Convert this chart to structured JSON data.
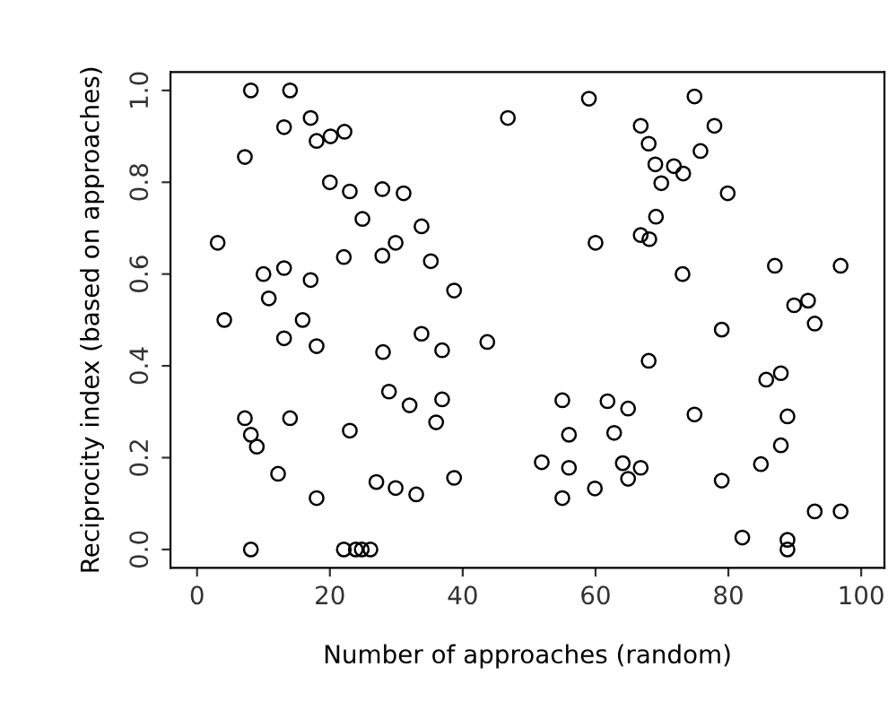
{
  "chart_data": {
    "type": "scatter",
    "xlabel": "Number of approaches (random)",
    "ylabel": "Reciprocity index (based on approaches)",
    "xlim": [
      -4,
      103.5
    ],
    "ylim": [
      -0.04,
      1.04
    ],
    "xticks": [
      0,
      20,
      40,
      60,
      80,
      100
    ],
    "yticks": [
      {
        "value": 0,
        "label": "0.0"
      },
      0.2,
      0.4,
      0.6,
      0.8,
      {
        "value": 1,
        "label": "1.0"
      }
    ],
    "grid": false,
    "legend": false,
    "marker": "circle",
    "series": [
      {
        "color": "#000000",
        "x": [
          8.1,
          14.0,
          17.1,
          13.1,
          22.2,
          20.1,
          18.0,
          7.2,
          46.8,
          20.0,
          23.0,
          27.9,
          31.1,
          24.9,
          33.8,
          3.1,
          29.9,
          27.9,
          22.1,
          35.2,
          13.1,
          10.0,
          17.1,
          10.8,
          38.7,
          4.1,
          15.9,
          13.1,
          18.0,
          33.8,
          36.9,
          28.0,
          43.7,
          28.9,
          32.0,
          36.9,
          36.0,
          7.2,
          14.0,
          23.0,
          8.1,
          9.0,
          12.2,
          27.0,
          29.9,
          33.0,
          38.7,
          18.0,
          8.1,
          22.1,
          23.9,
          24.8,
          26.1,
          59.0,
          74.9,
          66.8,
          77.9,
          68.0,
          75.8,
          69.0,
          71.8,
          73.2,
          69.9,
          79.9,
          69.1,
          66.8,
          68.1,
          60.0,
          73.1,
          87.0,
          96.9,
          89.9,
          92.0,
          93.0,
          79.0,
          68.0,
          85.7,
          87.9,
          55.0,
          61.8,
          64.9,
          74.9,
          88.9,
          56.0,
          62.8,
          87.9,
          51.9,
          56.0,
          64.1,
          66.8,
          64.9,
          84.9,
          79.0,
          59.9,
          55.0,
          93.0,
          96.9,
          82.1,
          88.9,
          88.9
        ],
        "values": [
          1.0,
          1.0,
          0.94,
          0.92,
          0.91,
          0.9,
          0.89,
          0.855,
          0.94,
          0.8,
          0.78,
          0.785,
          0.776,
          0.72,
          0.704,
          0.668,
          0.668,
          0.64,
          0.637,
          0.628,
          0.613,
          0.6,
          0.587,
          0.547,
          0.564,
          0.5,
          0.5,
          0.46,
          0.443,
          0.47,
          0.434,
          0.43,
          0.452,
          0.344,
          0.314,
          0.327,
          0.277,
          0.286,
          0.286,
          0.259,
          0.25,
          0.224,
          0.165,
          0.147,
          0.134,
          0.12,
          0.156,
          0.112,
          0.0,
          0.0,
          0.0,
          0.0,
          0.0,
          0.982,
          0.987,
          0.923,
          0.923,
          0.884,
          0.868,
          0.839,
          0.835,
          0.819,
          0.798,
          0.776,
          0.725,
          0.685,
          0.676,
          0.668,
          0.6,
          0.618,
          0.618,
          0.532,
          0.542,
          0.492,
          0.479,
          0.411,
          0.37,
          0.384,
          0.325,
          0.323,
          0.307,
          0.294,
          0.29,
          0.25,
          0.254,
          0.227,
          0.19,
          0.178,
          0.188,
          0.178,
          0.154,
          0.186,
          0.15,
          0.133,
          0.112,
          0.083,
          0.083,
          0.026,
          0.021,
          0.0
        ]
      }
    ]
  }
}
